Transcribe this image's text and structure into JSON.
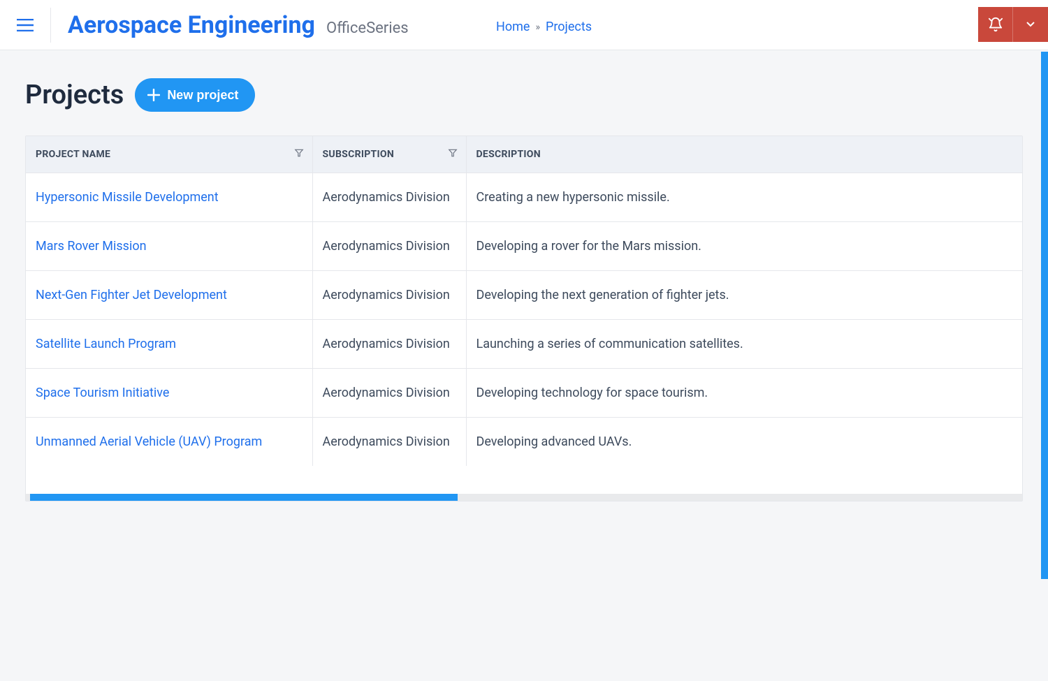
{
  "header": {
    "brand_title": "Aerospace Engineering",
    "brand_sub": "OfficeSeries"
  },
  "breadcrumb": {
    "home": "Home",
    "separator": "»",
    "current": "Projects"
  },
  "page": {
    "title": "Projects",
    "new_button": "New project"
  },
  "table": {
    "columns": {
      "name": "Project Name",
      "subscription": "Subscription",
      "description": "Description"
    },
    "rows": [
      {
        "name": "Hypersonic Missile Development",
        "subscription": "Aerodynamics Division",
        "description": "Creating a new hypersonic missile."
      },
      {
        "name": "Mars Rover Mission",
        "subscription": "Aerodynamics Division",
        "description": "Developing a rover for the Mars mission."
      },
      {
        "name": "Next-Gen Fighter Jet Development",
        "subscription": "Aerodynamics Division",
        "description": "Developing the next generation of fighter jets."
      },
      {
        "name": "Satellite Launch Program",
        "subscription": "Aerodynamics Division",
        "description": "Launching a series of communication satellites."
      },
      {
        "name": "Space Tourism Initiative",
        "subscription": "Aerodynamics Division",
        "description": "Developing technology for space tourism."
      },
      {
        "name": "Unmanned Aerial Vehicle (UAV) Program",
        "subscription": "Aerodynamics Division",
        "description": "Developing advanced UAVs."
      }
    ]
  },
  "colors": {
    "accent_blue": "#2196f3",
    "link_blue": "#1f6feb",
    "danger_red": "#c9483b",
    "text_dark": "#1f2b3e",
    "text_body": "#3d4a5c",
    "text_muted": "#6b7280",
    "bg_page": "#f5f6f8",
    "bg_header_row": "#eef1f6",
    "border": "#e5e7eb"
  }
}
